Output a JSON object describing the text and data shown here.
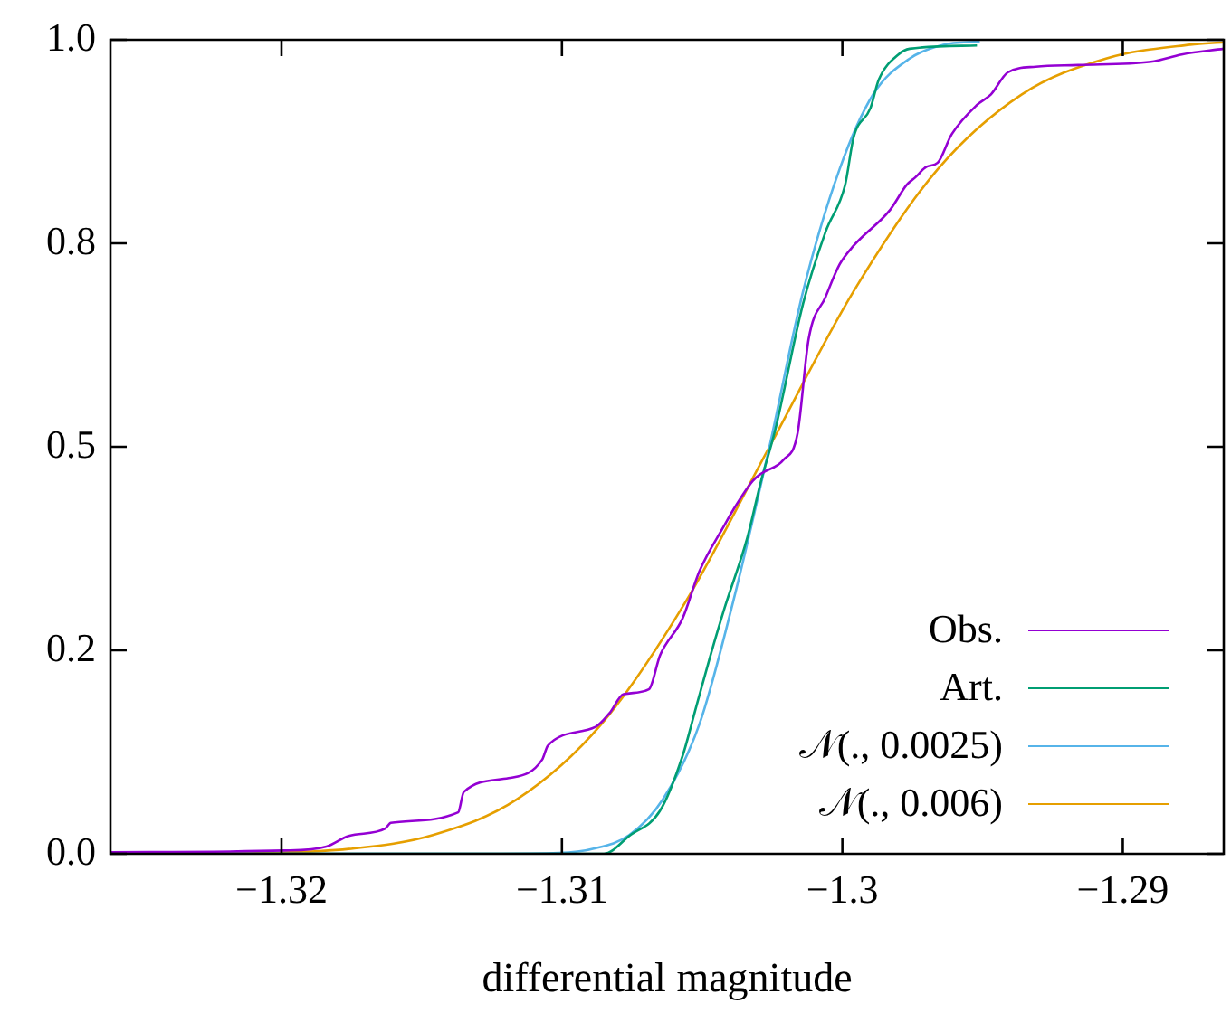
{
  "chart_data": {
    "type": "line",
    "xlabel": "differential magnitude",
    "xlim": [
      -1.3261,
      -1.2864
    ],
    "ylim": [
      0,
      1
    ],
    "xticks": [
      {
        "value": -1.32,
        "label": "−1.32"
      },
      {
        "value": -1.31,
        "label": "−1.31"
      },
      {
        "value": -1.3,
        "label": "−1.3"
      },
      {
        "value": -1.29,
        "label": "−1.29"
      }
    ],
    "yticks": [
      {
        "value": 0,
        "label": "0.0"
      },
      {
        "value": 0.25,
        "label": "0.2"
      },
      0.5,
      {
        "value": 0.75,
        "label": "0.8"
      },
      {
        "value": 1,
        "label": "1.0"
      }
    ],
    "grid": false,
    "legend": "bottom right",
    "marker": "none",
    "line_style": "solid",
    "series": [
      {
        "name": "Obs.",
        "color": "#9400d3",
        "x": [
          -1.3261,
          -1.3199,
          -1.3184,
          -1.3176,
          -1.3163,
          -1.3161,
          -1.3137,
          -1.3135,
          -1.3119,
          -1.3107,
          -1.3105,
          -1.3088,
          -1.3083,
          -1.3078,
          -1.3069,
          -1.3065,
          -1.3057,
          -1.3051,
          -1.3042,
          -1.3039,
          -1.3032,
          -1.3029,
          -1.3021,
          -1.3016,
          -1.3012,
          -1.3006,
          -1.3001,
          -1.2996,
          -1.2983,
          -1.2977,
          -1.2974,
          -1.297,
          -1.2966,
          -1.2961,
          -1.2952,
          -1.2947,
          -1.2941,
          -1.2931,
          -1.2916,
          -1.289,
          -1.2879,
          -1.2864
        ],
        "values": [
          0.002,
          0.004,
          0.009,
          0.022,
          0.031,
          0.038,
          0.051,
          0.076,
          0.093,
          0.116,
          0.133,
          0.156,
          0.173,
          0.196,
          0.202,
          0.244,
          0.289,
          0.347,
          0.404,
          0.422,
          0.458,
          0.467,
          0.484,
          0.516,
          0.633,
          0.684,
          0.724,
          0.747,
          0.791,
          0.822,
          0.831,
          0.844,
          0.849,
          0.884,
          0.92,
          0.933,
          0.96,
          0.967,
          0.969,
          0.973,
          0.982,
          0.989
        ]
      },
      {
        "name": "Art.",
        "color": "#009e73",
        "x": [
          -1.3261,
          -1.3085,
          -1.3076,
          -1.3065,
          -1.3057,
          -1.3052,
          -1.3047,
          -1.3042,
          -1.3034,
          -1.3029,
          -1.3024,
          -1.3014,
          -1.3006,
          -1.2999,
          -1.2996,
          -1.299,
          -1.2987,
          -1.298,
          -1.2976,
          -1.2952
        ],
        "values": [
          0,
          0,
          0.022,
          0.053,
          0.12,
          0.182,
          0.244,
          0.302,
          0.387,
          0.458,
          0.52,
          0.676,
          0.764,
          0.822,
          0.88,
          0.916,
          0.951,
          0.982,
          0.989,
          0.993
        ]
      },
      {
        "name": "𝒩(., 0.0025)",
        "color": "#56b4e9",
        "x": [
          -1.3261,
          -1.3126,
          -1.3101,
          -1.3089,
          -1.3076,
          -1.3064,
          -1.3051,
          -1.3039,
          -1.3026,
          -1.3014,
          -1.3001,
          -1.2989,
          -1.2976,
          -1.2964,
          -1.2951
        ],
        "values": [
          0,
          0,
          0.001,
          0.006,
          0.023,
          0.067,
          0.159,
          0.309,
          0.5,
          0.691,
          0.841,
          0.933,
          0.977,
          0.994,
          0.998
        ]
      },
      {
        "name": "𝒩(., 0.006)",
        "color": "#e69f00",
        "x": [
          -1.3261,
          -1.3236,
          -1.3206,
          -1.3176,
          -1.3146,
          -1.3116,
          -1.3086,
          -1.3056,
          -1.3026,
          -1.2996,
          -1.2966,
          -1.2936,
          -1.2906,
          -1.2876,
          -1.2864
        ],
        "values": [
          0,
          0,
          0.001,
          0.006,
          0.023,
          0.067,
          0.159,
          0.309,
          0.5,
          0.691,
          0.841,
          0.933,
          0.977,
          0.994,
          0.997
        ]
      }
    ]
  }
}
